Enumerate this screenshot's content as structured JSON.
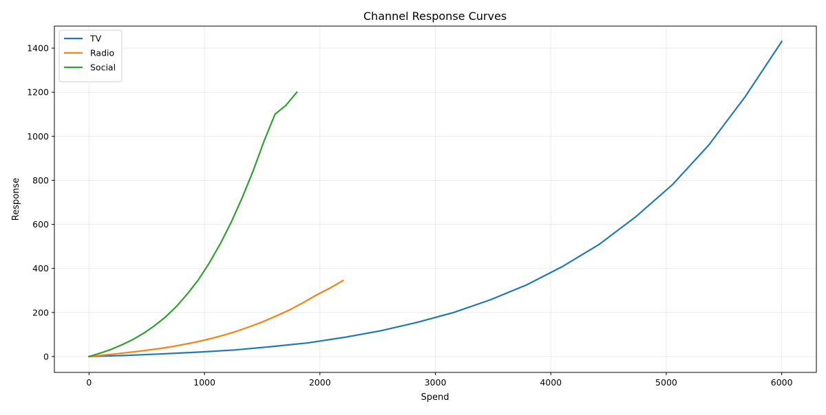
{
  "chart_data": {
    "type": "line",
    "title": "Channel Response Curves",
    "xlabel": "Spend",
    "ylabel": "Response",
    "xlim": [
      -300,
      6300
    ],
    "ylim": [
      -72,
      1500
    ],
    "xticks": [
      0,
      1000,
      2000,
      3000,
      4000,
      5000,
      6000
    ],
    "yticks": [
      0,
      200,
      400,
      600,
      800,
      1000,
      1200,
      1400
    ],
    "grid": true,
    "legend_position": "top-left",
    "series": [
      {
        "name": "TV",
        "color": "#1f77b4",
        "x": [
          0,
          316,
          632,
          947,
          1263,
          1579,
          1895,
          2211,
          2526,
          2842,
          3158,
          3474,
          3789,
          4105,
          4421,
          4737,
          5053,
          5368,
          5684,
          6000
        ],
        "y": [
          0,
          5,
          12,
          20,
          30,
          45,
          62,
          87,
          117,
          155,
          200,
          257,
          325,
          410,
          510,
          635,
          780,
          960,
          1180,
          1430
        ]
      },
      {
        "name": "Radio",
        "color": "#ff7f0e",
        "x": [
          0,
          116,
          232,
          347,
          463,
          579,
          695,
          811,
          926,
          1042,
          1158,
          1274,
          1389,
          1505,
          1621,
          1737,
          1853,
          1968,
          2084,
          2200
        ],
        "y": [
          0,
          6,
          12,
          19,
          26,
          34,
          43,
          54,
          66,
          80,
          96,
          114,
          135,
          158,
          184,
          212,
          244,
          279,
          310,
          345
        ]
      },
      {
        "name": "Social",
        "color": "#2ca02c",
        "x": [
          0,
          95,
          189,
          284,
          379,
          474,
          568,
          663,
          758,
          853,
          947,
          1042,
          1137,
          1232,
          1326,
          1421,
          1516,
          1611,
          1705,
          1800
        ],
        "y": [
          0,
          15,
          32,
          53,
          77,
          106,
          140,
          180,
          228,
          285,
          348,
          425,
          512,
          610,
          720,
          842,
          978,
          1100,
          1140,
          1200
        ]
      }
    ]
  }
}
